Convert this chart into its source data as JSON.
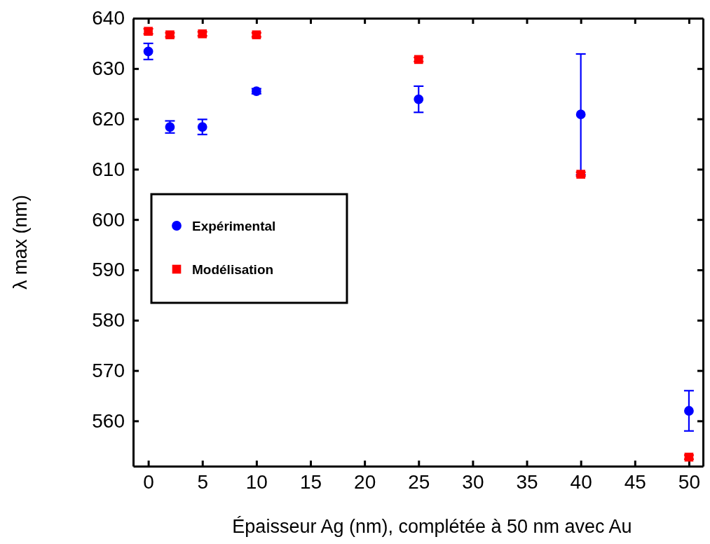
{
  "chart_data": {
    "type": "scatter",
    "xlabel": "Épaisseur Ag (nm), complétée à 50 nm avec Au",
    "ylabel": "λ max (nm)",
    "xlim": [
      -1.4,
      51.3
    ],
    "xticks": [
      0,
      5,
      10,
      15,
      20,
      25,
      30,
      35,
      40,
      45,
      50
    ],
    "ylim": [
      551,
      640
    ],
    "yticks": [
      560,
      570,
      580,
      590,
      600,
      610,
      620,
      630,
      640
    ],
    "grid": false,
    "legend": "left",
    "series": [
      {
        "name": "Expérimental",
        "color": "#0000ff",
        "marker": "circle",
        "x": [
          0,
          2,
          5,
          10,
          25,
          40,
          50
        ],
        "values": [
          633.4,
          618.4,
          618.4,
          625.5,
          623.9,
          620.9,
          562.0
        ],
        "errors": [
          1.6,
          1.2,
          1.5,
          0.5,
          2.6,
          12,
          4
        ]
      },
      {
        "name": "Modélisation",
        "color": "#ff0000",
        "marker": "square",
        "x": [
          0,
          2,
          5,
          10,
          25,
          40,
          50
        ],
        "values": [
          637.4,
          636.7,
          636.9,
          636.7,
          631.8,
          609.0,
          552.8
        ],
        "errors": [
          0.5,
          0.4,
          0.4,
          0.4,
          0.4,
          0.4,
          0.4
        ]
      }
    ]
  }
}
